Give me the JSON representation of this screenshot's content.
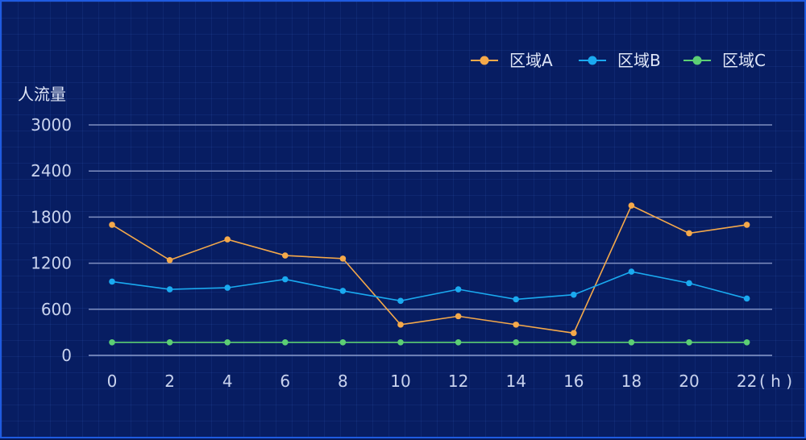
{
  "chart_data": {
    "type": "line",
    "title": "",
    "xlabel": "( h )",
    "ylabel": "人流量",
    "categories": [
      "0",
      "2",
      "4",
      "6",
      "8",
      "10",
      "12",
      "14",
      "16",
      "18",
      "20",
      "22"
    ],
    "yticks": [
      "0",
      "600",
      "1200",
      "1800",
      "2400",
      "3000"
    ],
    "ylim": [
      0,
      3000
    ],
    "grid": true,
    "legend_position": "top-right",
    "series": [
      {
        "name": "区域A",
        "color": "#f5a94a",
        "values": [
          1700,
          1240,
          1510,
          1300,
          1260,
          400,
          510,
          400,
          290,
          1950,
          1590,
          1700
        ]
      },
      {
        "name": "区域B",
        "color": "#1aaaf0",
        "values": [
          960,
          860,
          880,
          990,
          840,
          710,
          860,
          730,
          790,
          1090,
          940,
          740
        ]
      },
      {
        "name": "区域C",
        "color": "#5ccf74",
        "values": [
          170,
          170,
          170,
          170,
          170,
          170,
          170,
          170,
          170,
          170,
          170,
          170
        ]
      }
    ]
  }
}
